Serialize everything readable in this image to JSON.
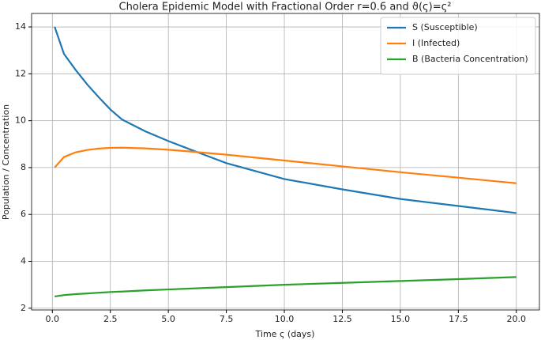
{
  "chart_data": {
    "type": "line",
    "title": "Cholera Epidemic Model with Fractional Order r=0.6 and ϑ(ς)=ς²",
    "xlabel": "Time ς (days)",
    "ylabel": "Population / Concentration",
    "x": [
      0.1,
      0.5,
      1,
      1.5,
      2,
      2.5,
      3,
      4,
      5,
      6,
      7.5,
      10,
      12.5,
      15,
      17.5,
      20
    ],
    "series": [
      {
        "name": "S (Susceptible)",
        "color": "#1f77b4",
        "values": [
          14,
          12.85,
          12.17,
          11.55,
          11,
          10.48,
          10.05,
          9.55,
          9.13,
          8.75,
          8.19,
          7.51,
          7.07,
          6.66,
          6.36,
          6.06
        ]
      },
      {
        "name": "I (Infected)",
        "color": "#ff7f0e",
        "values": [
          8,
          8.45,
          8.65,
          8.75,
          8.81,
          8.84,
          8.85,
          8.82,
          8.76,
          8.68,
          8.55,
          8.3,
          8.05,
          7.8,
          7.57,
          7.33
        ]
      },
      {
        "name": "B (Bacteria Concentration)",
        "color": "#2ca02c",
        "values": [
          2.5,
          2.56,
          2.6,
          2.63,
          2.66,
          2.69,
          2.71,
          2.76,
          2.8,
          2.84,
          2.9,
          3.0,
          3.08,
          3.16,
          3.24,
          3.33
        ]
      }
    ],
    "xlim": [
      -0.895,
      20.995
    ],
    "ylim": [
      1.925,
      14.575
    ],
    "xticks": [
      {
        "value": 0,
        "label": "0.0"
      },
      2.5,
      {
        "value": 5,
        "label": "5.0"
      },
      7.5,
      {
        "value": 10,
        "label": "10.0"
      },
      12.5,
      {
        "value": 15,
        "label": "15.0"
      },
      17.5,
      {
        "value": 20,
        "label": "20.0"
      }
    ],
    "yticks": [
      2,
      4,
      6,
      8,
      10,
      12,
      14
    ],
    "grid": true,
    "legend": "upper-right"
  }
}
